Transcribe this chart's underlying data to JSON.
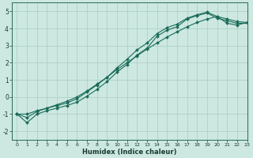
{
  "xlabel": "Humidex (Indice chaleur)",
  "bg_color": "#cce8e0",
  "grid_color": "#aaccC4",
  "line_color": "#1a6b5a",
  "x_values": [
    0,
    1,
    2,
    3,
    4,
    5,
    6,
    7,
    8,
    9,
    10,
    11,
    12,
    13,
    14,
    15,
    16,
    17,
    18,
    19,
    20,
    21,
    22,
    23
  ],
  "line1_y": [
    -1.0,
    -1.5,
    -1.0,
    -0.8,
    -0.65,
    -0.5,
    -0.3,
    0.05,
    0.45,
    0.9,
    1.45,
    1.9,
    2.45,
    2.85,
    3.55,
    3.9,
    4.1,
    4.55,
    4.75,
    4.9,
    4.6,
    4.45,
    4.3,
    4.3
  ],
  "line2_y": [
    -1.0,
    -1.2,
    -0.85,
    -0.65,
    -0.5,
    -0.35,
    -0.1,
    0.3,
    0.7,
    1.15,
    1.7,
    2.2,
    2.75,
    3.15,
    3.7,
    4.05,
    4.25,
    4.6,
    4.8,
    4.95,
    4.7,
    4.55,
    4.4,
    4.35
  ],
  "line3_y": [
    -1.0,
    -1.0,
    -0.8,
    -0.65,
    -0.45,
    -0.25,
    0.0,
    0.35,
    0.75,
    1.15,
    1.6,
    2.0,
    2.4,
    2.8,
    3.15,
    3.5,
    3.8,
    4.1,
    4.35,
    4.55,
    4.7,
    4.3,
    4.2,
    4.35
  ],
  "ylim": [
    -2.5,
    5.5
  ],
  "xlim": [
    -0.5,
    23
  ],
  "yticks": [
    -2,
    -1,
    0,
    1,
    2,
    3,
    4,
    5
  ],
  "xticks": [
    0,
    1,
    2,
    3,
    4,
    5,
    6,
    7,
    8,
    9,
    10,
    11,
    12,
    13,
    14,
    15,
    16,
    17,
    18,
    19,
    20,
    21,
    22,
    23
  ]
}
